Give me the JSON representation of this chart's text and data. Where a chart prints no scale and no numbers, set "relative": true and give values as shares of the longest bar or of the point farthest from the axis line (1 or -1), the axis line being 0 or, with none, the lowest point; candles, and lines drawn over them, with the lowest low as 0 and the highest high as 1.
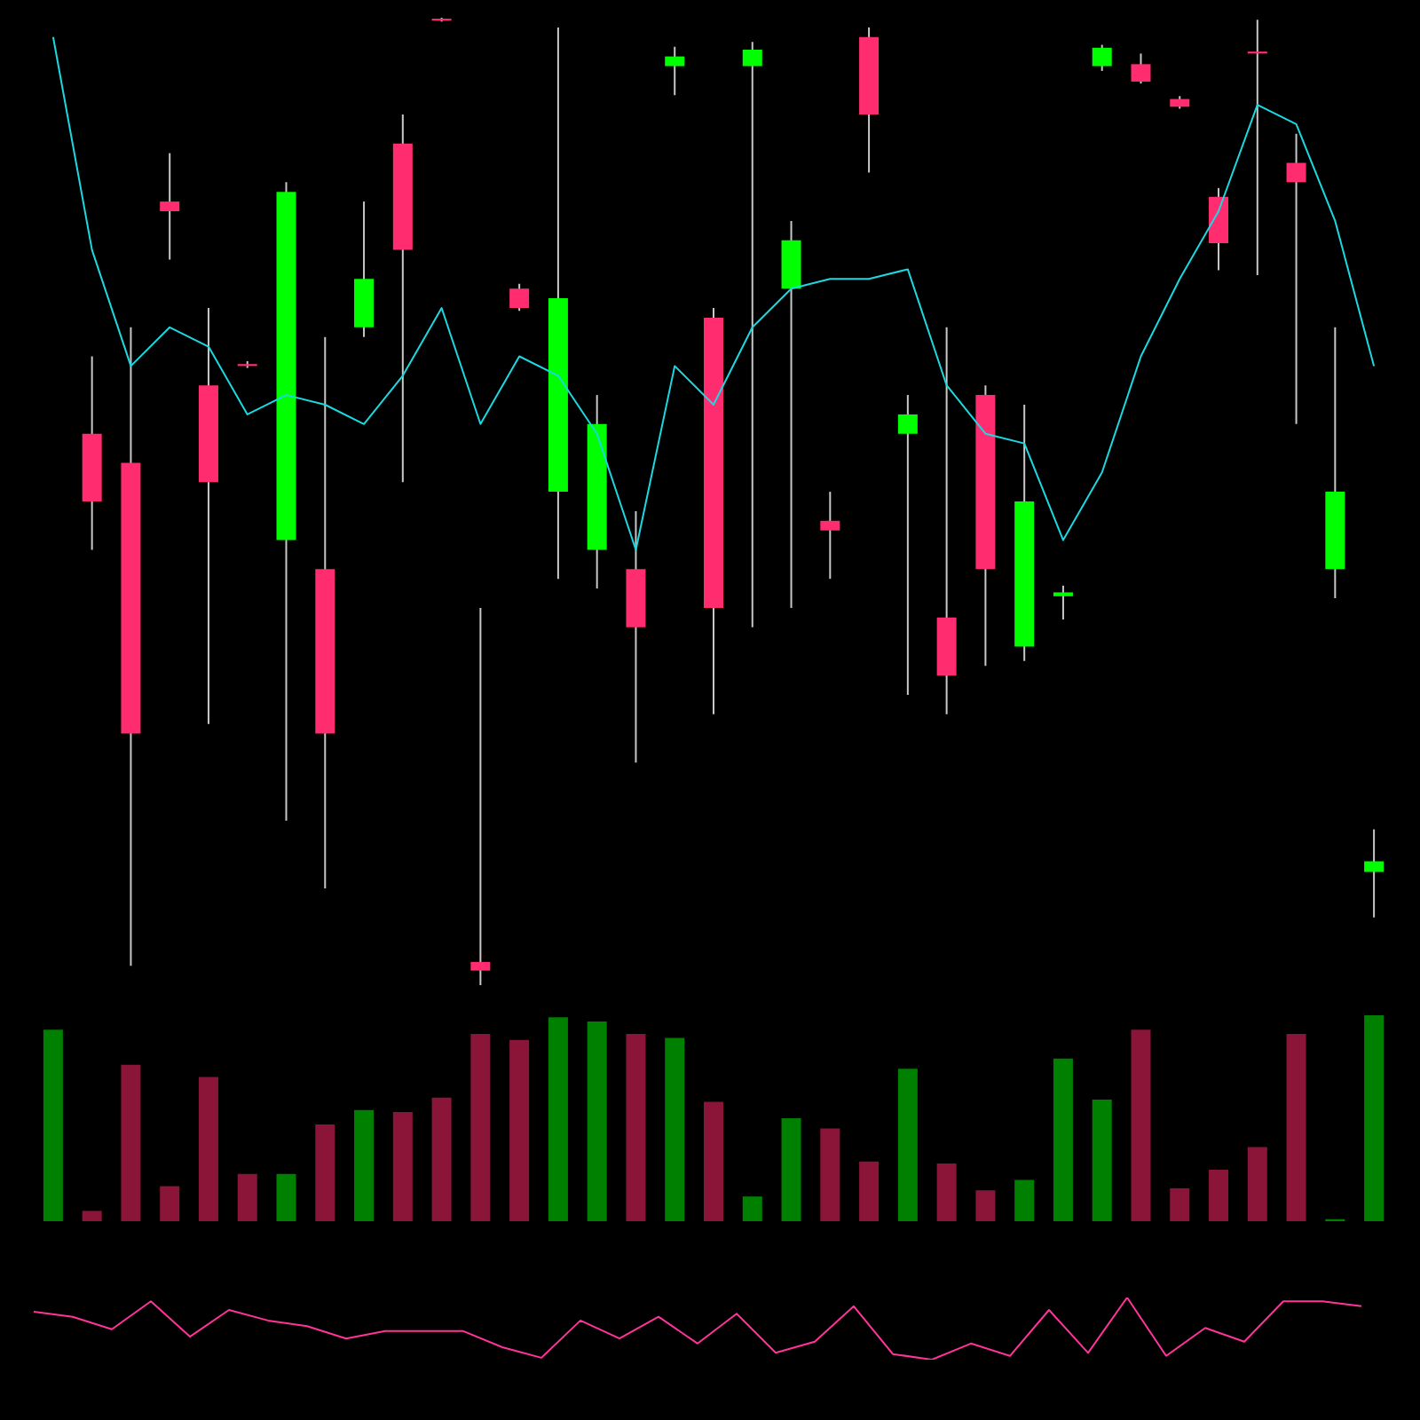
{
  "chart_data": [
    {
      "type": "candlestick",
      "relative": true,
      "categories": [
        null,
        null,
        null,
        null,
        null,
        null,
        null,
        null,
        null,
        null,
        null,
        null,
        null,
        null,
        null,
        null,
        null,
        null,
        null,
        null,
        null,
        null,
        null,
        null,
        null,
        null,
        null,
        null,
        null,
        null,
        null,
        null,
        null,
        null,
        null
      ],
      "ohlc": [
        null,
        [
          0.57,
          0.65,
          0.45,
          0.5
        ],
        [
          0.54,
          0.68,
          0.02,
          0.26
        ],
        [
          0.81,
          0.86,
          0.75,
          0.8
        ],
        [
          0.62,
          0.7,
          0.27,
          0.52
        ],
        [
          0.642,
          0.645,
          0.638,
          0.64
        ],
        [
          0.46,
          0.83,
          0.17,
          0.82
        ],
        [
          0.43,
          0.67,
          0.1,
          0.26
        ],
        [
          0.68,
          0.81,
          0.67,
          0.73
        ],
        [
          0.87,
          0.9,
          0.52,
          0.76
        ],
        [
          0.999,
          1.0,
          0.996,
          0.997
        ],
        [
          0.024,
          0.39,
          0,
          0.015
        ],
        [
          0.72,
          0.725,
          0.697,
          0.7
        ],
        [
          0.51,
          0.99,
          0.42,
          0.71
        ],
        [
          0.45,
          0.61,
          0.41,
          0.58
        ],
        [
          0.43,
          0.49,
          0.23,
          0.37
        ],
        [
          0.95,
          0.97,
          0.92,
          0.96
        ],
        [
          0.69,
          0.7,
          0.28,
          0.39
        ],
        [
          0.95,
          0.975,
          0.37,
          0.967
        ],
        [
          0.72,
          0.79,
          0.39,
          0.77
        ],
        [
          0.48,
          0.51,
          0.42,
          0.47
        ],
        [
          0.98,
          0.99,
          0.84,
          0.9
        ],
        [
          0.57,
          0.61,
          0.3,
          0.59
        ],
        [
          0.38,
          0.68,
          0.28,
          0.32
        ],
        [
          0.61,
          0.62,
          0.33,
          0.43
        ],
        [
          0.35,
          0.6,
          0.335,
          0.5
        ],
        [
          0.402,
          0.413,
          0.378,
          0.406
        ],
        [
          0.95,
          0.972,
          0.945,
          0.969
        ],
        [
          0.952,
          0.963,
          0.932,
          0.934
        ],
        [
          0.916,
          0.919,
          0.906,
          0.908
        ],
        [
          0.815,
          0.824,
          0.739,
          0.767
        ],
        [
          0.965,
          0.998,
          0.734,
          0.963
        ],
        [
          0.85,
          0.88,
          0.58,
          0.83
        ],
        [
          0.43,
          0.68,
          0.4,
          0.51
        ],
        [
          0.117,
          0.161,
          0.07,
          0.128
        ]
      ],
      "colors": [
        null,
        "#ff2d6f",
        "#ff2d6f",
        "#ff2d6f",
        "#ff2d6f",
        "#ff2d6f",
        "#00ff00",
        "#ff2d6f",
        "#00ff00",
        "#ff2d6f",
        "#ff2d6f",
        "#ff2d6f",
        "#ff2d6f",
        "#00ff00",
        "#00ff00",
        "#ff2d6f",
        "#00ff00",
        "#ff2d6f",
        "#00ff00",
        "#00ff00",
        "#ff2d6f",
        "#ff2d6f",
        "#00ff00",
        "#ff2d6f",
        "#ff2d6f",
        "#00ff00",
        "#00ff00",
        "#00ff00",
        "#ff2d6f",
        "#ff2d6f",
        "#ff2d6f",
        "#ff2d6f",
        "#ff2d6f",
        "#00ff00",
        "#00ff00"
      ],
      "series": [
        {
          "type": "line",
          "color": "#1ad9e0",
          "values": [
            0.98,
            0.76,
            0.64,
            0.68,
            0.66,
            0.59,
            0.61,
            0.6,
            0.58,
            0.63,
            0.7,
            0.58,
            0.65,
            0.63,
            0.57,
            0.45,
            0.64,
            0.6,
            0.68,
            0.72,
            0.73,
            0.73,
            0.74,
            0.62,
            0.57,
            0.56,
            0.46,
            0.53,
            0.65,
            0.73,
            0.8,
            0.91,
            0.89,
            0.79,
            0.64
          ]
        }
      ]
    },
    {
      "type": "bar",
      "relative": true,
      "categories": [
        null,
        null,
        null,
        null,
        null,
        null,
        null,
        null,
        null,
        null,
        null,
        null,
        null,
        null,
        null,
        null,
        null,
        null,
        null,
        null,
        null,
        null,
        null,
        null,
        null,
        null,
        null,
        null,
        null,
        null,
        null,
        null,
        null,
        null,
        null
      ],
      "values": [
        0.93,
        0.05,
        0.76,
        0.17,
        0.7,
        0.23,
        0.23,
        0.47,
        0.54,
        0.53,
        0.6,
        0.91,
        0.88,
        0.99,
        0.97,
        0.91,
        0.89,
        0.58,
        0.12,
        0.5,
        0.45,
        0.29,
        0.74,
        0.28,
        0.15,
        0.2,
        0.79,
        0.59,
        0.93,
        0.16,
        0.25,
        0.36,
        0.91,
        0.01,
        1.0
      ],
      "colors": [
        "#008000",
        "#8b1538",
        "#8b1538",
        "#8b1538",
        "#8b1538",
        "#8b1538",
        "#008000",
        "#8b1538",
        "#008000",
        "#8b1538",
        "#8b1538",
        "#8b1538",
        "#8b1538",
        "#008000",
        "#008000",
        "#8b1538",
        "#008000",
        "#8b1538",
        "#008000",
        "#008000",
        "#8b1538",
        "#8b1538",
        "#008000",
        "#8b1538",
        "#8b1538",
        "#008000",
        "#008000",
        "#008000",
        "#8b1538",
        "#8b1538",
        "#8b1538",
        "#8b1538",
        "#8b1538",
        "#008000",
        "#008000"
      ]
    },
    {
      "type": "line",
      "relative": true,
      "categories": [
        null,
        null,
        null,
        null,
        null,
        null,
        null,
        null,
        null,
        null,
        null,
        null,
        null,
        null,
        null,
        null,
        null,
        null,
        null,
        null,
        null,
        null,
        null,
        null,
        null,
        null,
        null,
        null,
        null,
        null,
        null,
        null,
        null,
        null,
        null
      ],
      "series": [
        {
          "color": "#ff3399",
          "values": [
            0.77,
            0.69,
            0.49,
            0.94,
            0.37,
            0.8,
            0.63,
            0.54,
            0.34,
            0.46,
            0.46,
            0.46,
            0.2,
            0.03,
            0.63,
            0.34,
            0.69,
            0.26,
            0.74,
            0.11,
            0.29,
            0.86,
            0.09,
            0,
            0.26,
            0.06,
            0.8,
            0.11,
            1,
            0.06,
            0.51,
            0.29,
            0.94,
            0.94,
            0.86
          ]
        }
      ]
    }
  ]
}
